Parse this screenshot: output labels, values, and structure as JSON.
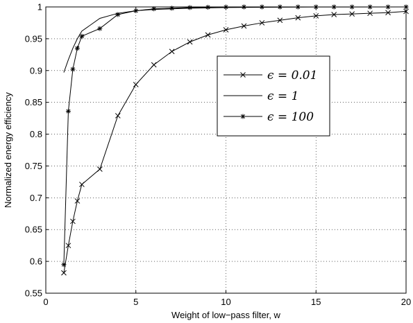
{
  "chart_data": {
    "type": "line",
    "xlabel": "Weight of low−pass filter, w",
    "ylabel": "Normalized energy efficiency",
    "xlim": [
      0,
      20
    ],
    "ylim": [
      0.55,
      1
    ],
    "xticks": [
      0,
      5,
      10,
      15,
      20
    ],
    "yticks": [
      0.55,
      0.6,
      0.65,
      0.7,
      0.75,
      0.8,
      0.85,
      0.9,
      0.95,
      1
    ],
    "grid": true,
    "legend_position": "center-right",
    "series": [
      {
        "name": "ϵ = 0.01",
        "marker": "x",
        "x": [
          1,
          1.25,
          1.5,
          1.75,
          2,
          3,
          4,
          5,
          6,
          7,
          8,
          9,
          10,
          11,
          12,
          13,
          14,
          15,
          16,
          17,
          18,
          19,
          20
        ],
        "y": [
          0.582,
          0.625,
          0.663,
          0.695,
          0.721,
          0.745,
          0.829,
          0.878,
          0.909,
          0.93,
          0.945,
          0.956,
          0.964,
          0.97,
          0.975,
          0.979,
          0.983,
          0.986,
          0.988,
          0.989,
          0.99,
          0.991,
          0.993
        ]
      },
      {
        "name": "ϵ = 1",
        "marker": "none",
        "x": [
          1,
          1.25,
          1.5,
          1.75,
          2,
          3,
          4,
          5,
          6,
          7,
          8,
          10,
          12,
          15,
          20
        ],
        "y": [
          0.897,
          0.917,
          0.935,
          0.95,
          0.962,
          0.982,
          0.99,
          0.994,
          0.996,
          0.997,
          0.998,
          0.999,
          0.9995,
          0.9998,
          1.0
        ]
      },
      {
        "name": "ϵ = 100",
        "marker": "*",
        "x": [
          1,
          1.25,
          1.5,
          1.75,
          2,
          3,
          4,
          5,
          6,
          7,
          8,
          9,
          10,
          11,
          12,
          13,
          14,
          15,
          16,
          17,
          18,
          19,
          20
        ],
        "y": [
          0.595,
          0.836,
          0.902,
          0.935,
          0.954,
          0.966,
          0.988,
          0.994,
          0.997,
          0.998,
          0.999,
          0.9995,
          0.9998,
          1.0,
          1.0,
          1.0,
          1.0,
          1.0,
          1.0,
          1.0,
          1.0,
          1.0,
          1.0
        ]
      }
    ]
  }
}
